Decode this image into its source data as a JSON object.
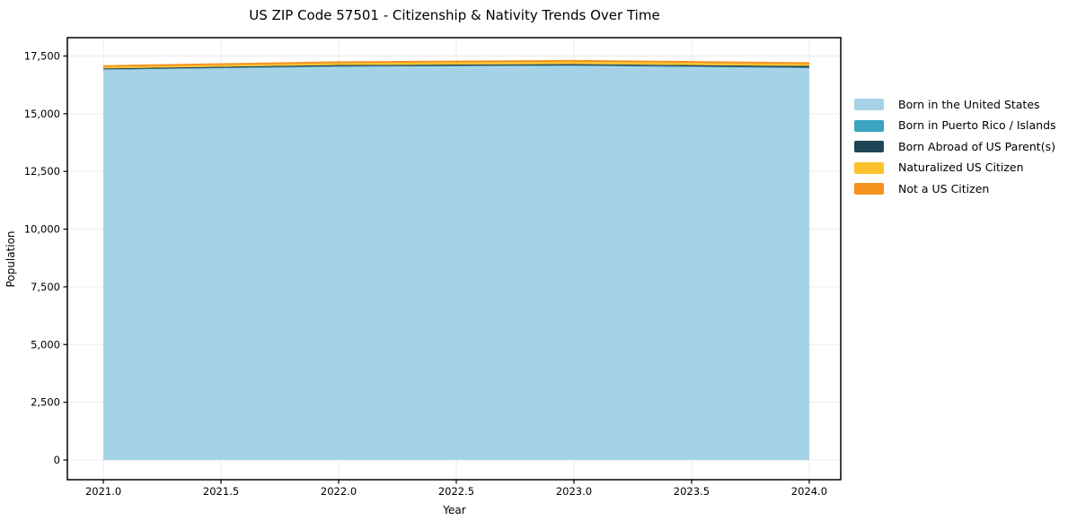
{
  "chart_data": {
    "type": "area",
    "stacked": true,
    "title": "US ZIP Code 57501 - Citizenship & Nativity Trends Over Time",
    "xlabel": "Year",
    "ylabel": "Population",
    "x": [
      2021,
      2022,
      2023,
      2024
    ],
    "series": [
      {
        "name": "Born in the United States",
        "key": "born-in-us",
        "color": "#a6d2e7",
        "values": [
          16900,
          17030,
          17070,
          16970
        ]
      },
      {
        "name": "Born in Puerto Rico / Islands",
        "key": "born-puerto-rico-islands",
        "color": "#3ba4c0",
        "values": [
          20,
          25,
          25,
          30
        ]
      },
      {
        "name": "Born Abroad of US Parent(s)",
        "key": "born-abroad-us-parents",
        "color": "#1f4656",
        "values": [
          45,
          55,
          55,
          70
        ]
      },
      {
        "name": "Naturalized US Citizen",
        "key": "naturalized-us-citizen",
        "color": "#fcc22d",
        "values": [
          60,
          80,
          100,
          80
        ]
      },
      {
        "name": "Not a US Citizen",
        "key": "not-a-us-citizen",
        "color": "#f5931e",
        "values": [
          75,
          80,
          80,
          80
        ]
      }
    ],
    "x_ticks": [
      2021.0,
      2021.5,
      2022.0,
      2022.5,
      2023.0,
      2023.5,
      2024.0
    ],
    "x_tick_labels": [
      "2021.0",
      "2021.5",
      "2022.0",
      "2022.5",
      "2023.0",
      "2023.5",
      "2024.0"
    ],
    "y_ticks": [
      0,
      2500,
      5000,
      7500,
      10000,
      12500,
      15000,
      17500
    ],
    "y_tick_labels": [
      "0",
      "2,500",
      "5,000",
      "7,500",
      "10,000",
      "12,500",
      "15,000",
      "17,500"
    ],
    "xlim": [
      2020.847,
      2024.134
    ],
    "ylim": [
      -855,
      18295
    ],
    "grid": true,
    "legend_position": "right",
    "colors": {
      "grid": "#ebebeb",
      "spine": "#000000",
      "text": "#000000",
      "background": "#ffffff"
    }
  }
}
